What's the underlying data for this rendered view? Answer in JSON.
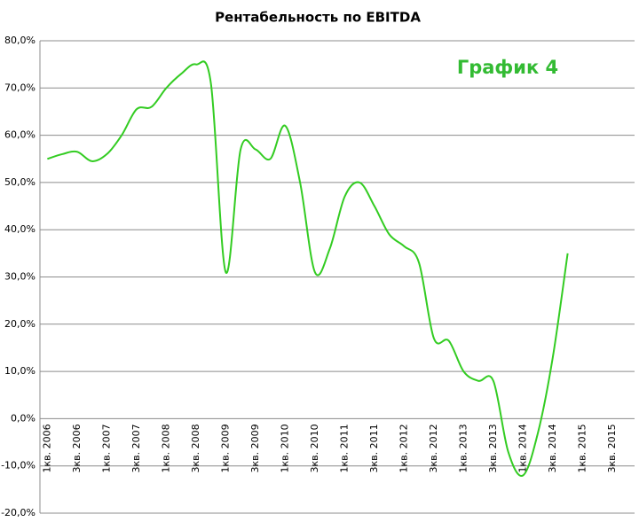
{
  "chart_data": {
    "type": "line",
    "title": "Рентабельность по EBITDA",
    "annotation": "График 4",
    "categories": [
      "1кв. 2006",
      null,
      "3кв. 2006",
      null,
      "1кв. 2007",
      null,
      "3кв. 2007",
      null,
      "1кв. 2008",
      null,
      "3кв. 2008",
      null,
      "1кв. 2009",
      null,
      "3кв. 2009",
      null,
      "1кв. 2010",
      null,
      "3кв. 2010",
      null,
      "1кв. 2011",
      null,
      "3кв. 2011",
      null,
      "1кв. 2012",
      null,
      "3кв. 2012",
      null,
      "1кв. 2013",
      null,
      "3кв. 2013",
      null,
      "1кв. 2014",
      null,
      "3кв. 2014",
      null,
      "1кв. 2015",
      null,
      "3кв. 2015",
      null
    ],
    "series": [
      {
        "color": "#33cc22",
        "values": [
          55,
          56,
          56.5,
          54.5,
          56,
          60,
          65.5,
          66,
          70,
          73,
          75,
          71,
          31,
          57,
          57,
          55,
          62,
          50,
          31,
          36,
          47,
          50,
          45,
          39,
          36.5,
          33,
          17,
          16.5,
          10,
          8,
          8,
          -7,
          -12,
          -3,
          13,
          35,
          null,
          null,
          null,
          null
        ]
      }
    ],
    "ylim": [
      -20,
      80
    ],
    "yticks": [
      {
        "value": -20,
        "label": "-20,0%"
      },
      {
        "value": -10,
        "label": "-10,0%"
      },
      {
        "value": 0,
        "label": "0,0%"
      },
      {
        "value": 10,
        "label": "10,0%"
      },
      {
        "value": 20,
        "label": "20,0%"
      },
      {
        "value": 30,
        "label": "30,0%"
      },
      {
        "value": 40,
        "label": "40,0%"
      },
      {
        "value": 50,
        "label": "50,0%"
      },
      {
        "value": 60,
        "label": "60,0%"
      },
      {
        "value": 70,
        "label": "70,0%"
      },
      {
        "value": 80,
        "label": "80,0%"
      }
    ],
    "grid": true
  }
}
